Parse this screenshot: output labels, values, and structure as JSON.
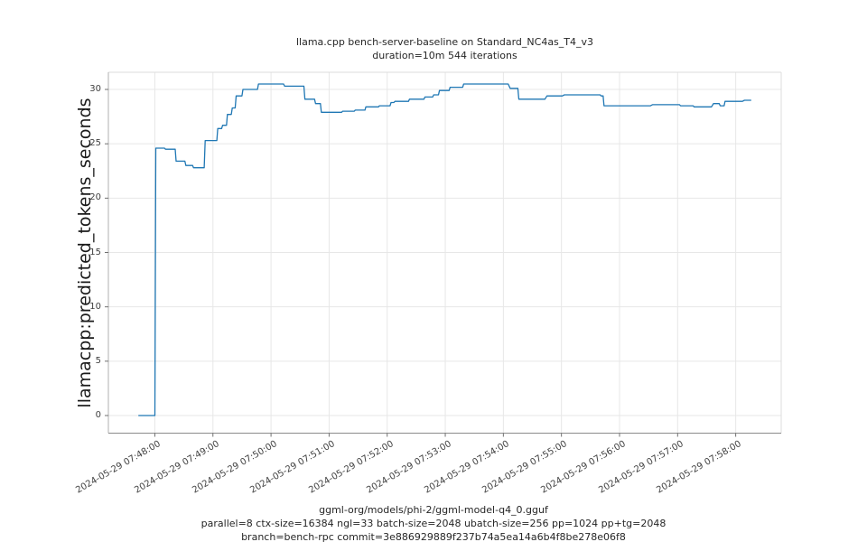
{
  "figure": {
    "title_line1": "llama.cpp bench-server-baseline on Standard_NC4as_T4_v3",
    "title_line2": "duration=10m 544 iterations",
    "ylabel": "llamacpp:predicted_tokens_seconds",
    "caption_line1": "ggml-org/models/phi-2/ggml-model-q4_0.gguf",
    "caption_line2": "parallel=8 ctx-size=16384 ngl=33 batch-size=2048 ubatch-size=256 pp=1024 pp+tg=2048",
    "caption_line3": "branch=bench-rpc commit=3e886929889f237b74a5ea14a6b4f8be278e06f8"
  },
  "chart_data": {
    "type": "line",
    "title": "llama.cpp bench-server-baseline on Standard_NC4as_T4_v3",
    "subtitle": "duration=10m 544 iterations",
    "xlabel": "",
    "ylabel": "llamacpp:predicted_tokens_seconds",
    "grid": true,
    "legend_position": "none",
    "line_color": "#1f77b4",
    "grid_color": "#e7e7e7",
    "xlim_seconds": [
      -48,
      647
    ],
    "ylim": [
      -1.62,
      31.58
    ],
    "y_ticks": [
      0,
      5,
      10,
      15,
      20,
      25,
      30
    ],
    "x_ticks_seconds": [
      0,
      60,
      120,
      180,
      240,
      300,
      360,
      420,
      480,
      540,
      600
    ],
    "x_tick_labels": [
      "2024-05-29 07:48:00",
      "2024-05-29 07:49:00",
      "2024-05-29 07:50:00",
      "2024-05-29 07:51:00",
      "2024-05-29 07:52:00",
      "2024-05-29 07:53:00",
      "2024-05-29 07:54:00",
      "2024-05-29 07:55:00",
      "2024-05-29 07:56:00",
      "2024-05-29 07:57:00",
      "2024-05-29 07:58:00"
    ],
    "series": [
      {
        "name": "llamacpp:predicted_tokens_seconds",
        "points_seconds_value": [
          [
            -17,
            0.0
          ],
          [
            0,
            0.0
          ],
          [
            1,
            24.6
          ],
          [
            10,
            24.6
          ],
          [
            11,
            24.5
          ],
          [
            21,
            24.5
          ],
          [
            22,
            23.4
          ],
          [
            31,
            23.4
          ],
          [
            32,
            23.0
          ],
          [
            39,
            23.0
          ],
          [
            40,
            22.8
          ],
          [
            51,
            22.8
          ],
          [
            52,
            25.3
          ],
          [
            64,
            25.3
          ],
          [
            65,
            26.4
          ],
          [
            69,
            26.4
          ],
          [
            70,
            26.7
          ],
          [
            74,
            26.7
          ],
          [
            75,
            27.7
          ],
          [
            79,
            27.7
          ],
          [
            80,
            28.3
          ],
          [
            83,
            28.3
          ],
          [
            84,
            29.4
          ],
          [
            90,
            29.4
          ],
          [
            91,
            30.0
          ],
          [
            106,
            30.0
          ],
          [
            107,
            30.5
          ],
          [
            133,
            30.5
          ],
          [
            134,
            30.3
          ],
          [
            154,
            30.3
          ],
          [
            155,
            29.1
          ],
          [
            165,
            29.1
          ],
          [
            166,
            28.7
          ],
          [
            171,
            28.7
          ],
          [
            172,
            27.9
          ],
          [
            193,
            27.9
          ],
          [
            194,
            28.0
          ],
          [
            206,
            28.0
          ],
          [
            207,
            28.1
          ],
          [
            217,
            28.1
          ],
          [
            218,
            28.4
          ],
          [
            231,
            28.4
          ],
          [
            232,
            28.5
          ],
          [
            243,
            28.5
          ],
          [
            244,
            28.8
          ],
          [
            247,
            28.8
          ],
          [
            248,
            28.9
          ],
          [
            262,
            28.9
          ],
          [
            263,
            29.1
          ],
          [
            278,
            29.1
          ],
          [
            279,
            29.3
          ],
          [
            287,
            29.3
          ],
          [
            288,
            29.5
          ],
          [
            293,
            29.5
          ],
          [
            294,
            29.9
          ],
          [
            304,
            29.9
          ],
          [
            305,
            30.2
          ],
          [
            318,
            30.2
          ],
          [
            319,
            30.5
          ],
          [
            365,
            30.5
          ],
          [
            367,
            30.1
          ],
          [
            375,
            30.1
          ],
          [
            376,
            29.1
          ],
          [
            403,
            29.1
          ],
          [
            405,
            29.4
          ],
          [
            421,
            29.4
          ],
          [
            423,
            29.5
          ],
          [
            460,
            29.5
          ],
          [
            461,
            29.4
          ],
          [
            463,
            29.4
          ],
          [
            464,
            28.5
          ],
          [
            512,
            28.5
          ],
          [
            514,
            28.6
          ],
          [
            542,
            28.6
          ],
          [
            543,
            28.5
          ],
          [
            556,
            28.5
          ],
          [
            557,
            28.4
          ],
          [
            575,
            28.4
          ],
          [
            577,
            28.7
          ],
          [
            583,
            28.7
          ],
          [
            584,
            28.5
          ],
          [
            588,
            28.5
          ],
          [
            589,
            28.9
          ],
          [
            607,
            28.9
          ],
          [
            609,
            29.0
          ],
          [
            616,
            29.0
          ]
        ]
      }
    ]
  }
}
